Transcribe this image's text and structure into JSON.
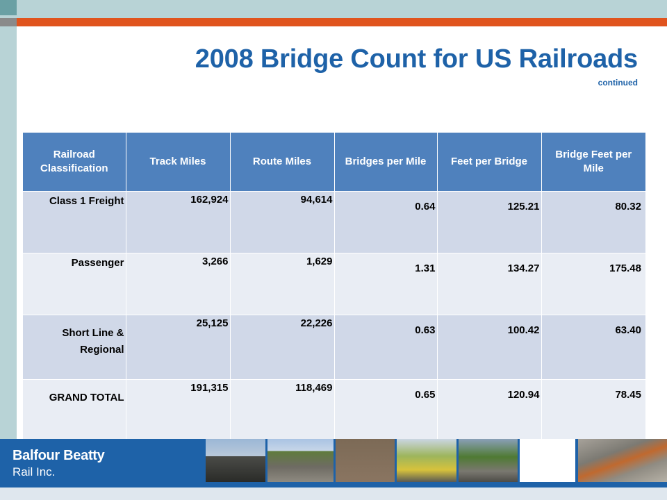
{
  "slide": {
    "title": "2008 Bridge Count for US Railroads",
    "subtitle": "continued"
  },
  "table": {
    "headers": [
      "Railroad Classification",
      "Track Miles",
      "Route Miles",
      "Bridges per Mile",
      "Feet per Bridge",
      "Bridge Feet per Mile"
    ],
    "rows": [
      [
        "Class 1 Freight",
        "162,924",
        "94,614",
        "0.64",
        "125.21",
        "80.32"
      ],
      [
        "Passenger",
        "3,266",
        "1,629",
        "1.31",
        "134.27",
        "175.48"
      ],
      [
        "Short Line & Regional",
        "25,125",
        "22,226",
        "0.63",
        "100.42",
        "63.40"
      ],
      [
        "GRAND TOTAL",
        "191,315",
        "118,469",
        "0.65",
        "120.94",
        "78.45"
      ]
    ]
  },
  "footer": {
    "logo_line1": "Balfour Beatty",
    "logo_line2": "Rail Inc."
  },
  "colors": {
    "accent_orange": "#e0541e",
    "title_blue": "#1e62a8",
    "header_blue": "#4f81bd",
    "row_odd": "#d0d8e8",
    "row_even": "#e9edf4"
  }
}
